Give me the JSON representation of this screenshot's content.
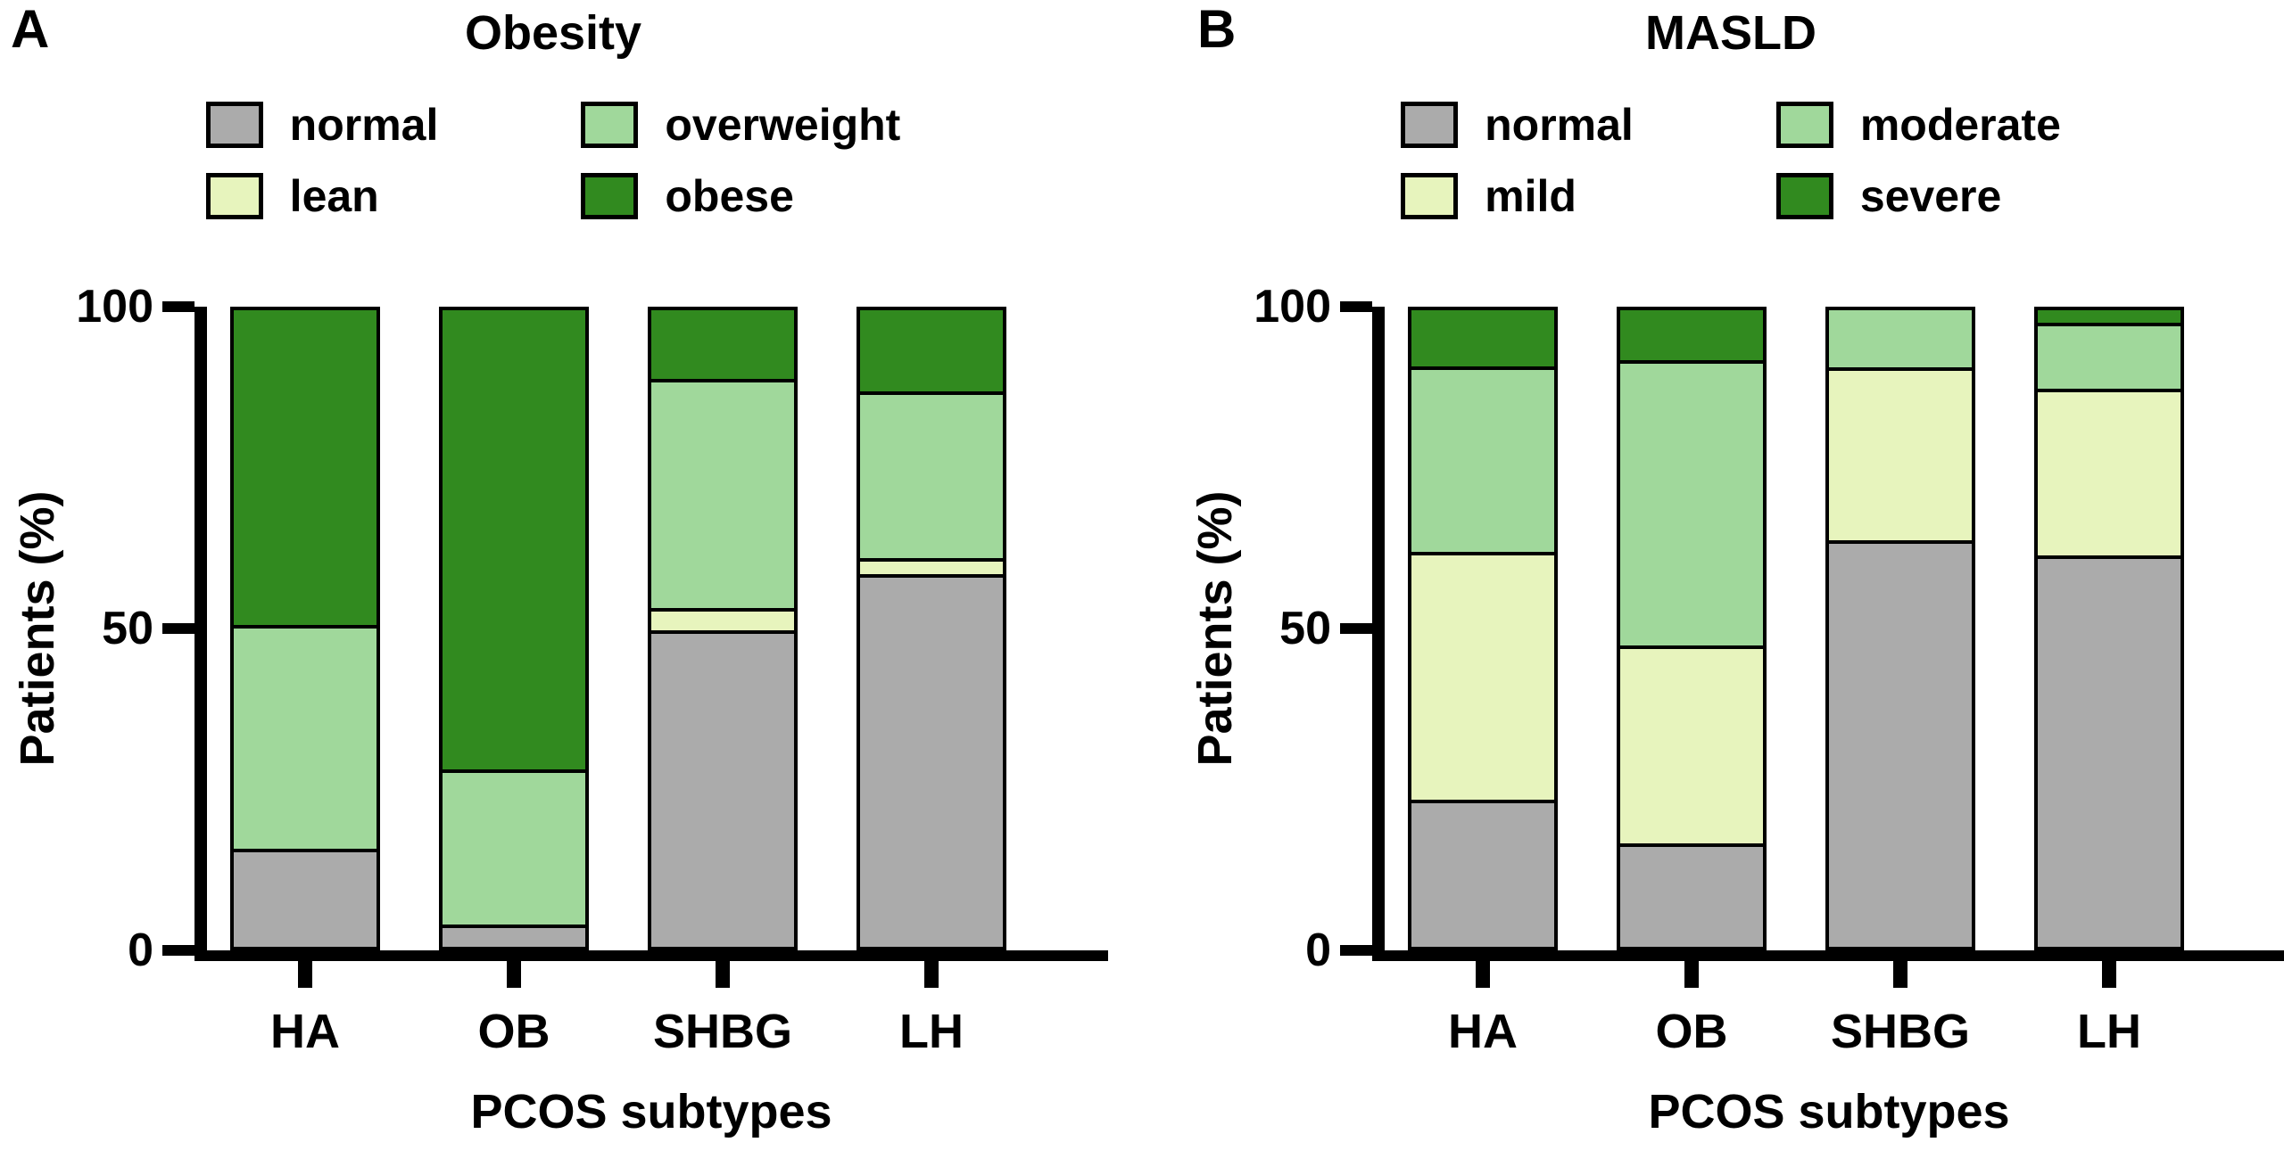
{
  "figure": {
    "panels": [
      {
        "letter": "A"
      },
      {
        "letter": "B"
      }
    ]
  },
  "chart_data": [
    {
      "type": "bar",
      "stacked": true,
      "title": "Obesity",
      "categories": [
        "HA",
        "OB",
        "SHBG",
        "LH"
      ],
      "series": [
        {
          "name": "normal",
          "color": "#ababab",
          "values": [
            15,
            3,
            50,
            59
          ]
        },
        {
          "name": "lean",
          "color": "#e7f4bd",
          "values": [
            0,
            0,
            3,
            2
          ]
        },
        {
          "name": "overweight",
          "color": "#a0d89b",
          "values": [
            35,
            24,
            36,
            26
          ]
        },
        {
          "name": "obese",
          "color": "#318a1f",
          "values": [
            50,
            73,
            11,
            13
          ]
        }
      ],
      "legend_order": [
        "normal",
        "overweight",
        "lean",
        "obese"
      ],
      "xlabel": "PCOS subtypes",
      "ylabel": "Patients (%)",
      "ylim": [
        0,
        100
      ],
      "yticks": [
        100,
        50,
        0
      ],
      "legend_position": "top",
      "grid": false
    },
    {
      "type": "bar",
      "stacked": true,
      "title": "MASLD",
      "categories": [
        "HA",
        "OB",
        "SHBG",
        "LH"
      ],
      "series": [
        {
          "name": "normal",
          "color": "#ababab",
          "values": [
            23,
            16,
            64,
            62
          ]
        },
        {
          "name": "mild",
          "color": "#e7f4bd",
          "values": [
            39,
            31,
            27,
            26
          ]
        },
        {
          "name": "moderate",
          "color": "#a0d89b",
          "values": [
            29,
            45,
            9,
            10
          ]
        },
        {
          "name": "severe",
          "color": "#318a1f",
          "values": [
            9,
            8,
            0,
            2
          ]
        }
      ],
      "legend_order": [
        "normal",
        "moderate",
        "mild",
        "severe"
      ],
      "xlabel": "PCOS subtypes",
      "ylabel": "Patients (%)",
      "ylim": [
        0,
        100
      ],
      "yticks": [
        100,
        50,
        0
      ],
      "legend_position": "top",
      "grid": false
    }
  ]
}
